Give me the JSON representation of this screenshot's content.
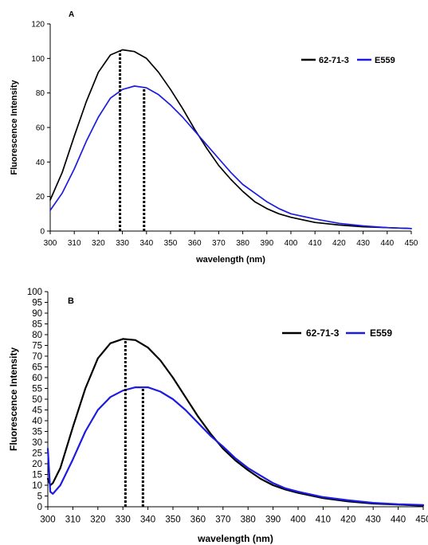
{
  "chart_data": [
    {
      "type": "line",
      "panel_label": "A",
      "title": "",
      "xlabel": "wavelength (nm)",
      "ylabel": "Fluorescence Intensity",
      "xlim": [
        300,
        450
      ],
      "ylim": [
        0,
        120
      ],
      "xticks": [
        300,
        310,
        320,
        330,
        340,
        350,
        360,
        370,
        380,
        390,
        400,
        410,
        420,
        430,
        440,
        450
      ],
      "yticks": [
        0,
        20,
        40,
        60,
        80,
        100,
        120
      ],
      "grid": false,
      "legend_position": "top-right",
      "x": [
        300,
        305,
        310,
        315,
        320,
        325,
        330,
        335,
        340,
        345,
        350,
        355,
        360,
        365,
        370,
        375,
        380,
        385,
        390,
        395,
        400,
        410,
        420,
        430,
        440,
        450
      ],
      "series": [
        {
          "name": "62-71-3",
          "color": "#000000",
          "values": [
            18,
            34,
            55,
            75,
            92,
            102,
            105,
            104,
            100,
            92,
            82,
            71,
            59,
            48,
            38,
            30,
            23,
            17,
            13,
            10,
            8,
            5,
            3.5,
            2.5,
            2,
            1.5
          ]
        },
        {
          "name": "E559",
          "color": "#1c1ce0",
          "values": [
            12,
            22,
            36,
            52,
            66,
            77,
            82,
            84,
            83,
            79,
            73,
            66,
            58,
            50,
            42,
            34,
            27,
            22,
            17,
            13,
            10,
            7,
            4.5,
            3,
            2,
            1.5
          ]
        }
      ],
      "markers": [
        {
          "x": 329,
          "series": "62-71-3"
        },
        {
          "x": 339,
          "series": "E559"
        }
      ]
    },
    {
      "type": "line",
      "panel_label": "B",
      "title": "",
      "xlabel": "wavelength (nm)",
      "ylabel": "Fluorescence Intensity",
      "xlim": [
        300,
        450
      ],
      "ylim": [
        0,
        100
      ],
      "xticks": [
        300,
        310,
        320,
        330,
        340,
        350,
        360,
        370,
        380,
        390,
        400,
        410,
        420,
        430,
        440,
        450
      ],
      "yticks": [
        0,
        5,
        10,
        15,
        20,
        25,
        30,
        35,
        40,
        45,
        50,
        55,
        60,
        65,
        70,
        75,
        80,
        85,
        90,
        95,
        100
      ],
      "grid": false,
      "legend_position": "top-right",
      "x": [
        300,
        301,
        302,
        305,
        310,
        315,
        320,
        325,
        330,
        335,
        340,
        345,
        350,
        355,
        360,
        365,
        370,
        375,
        380,
        385,
        390,
        395,
        400,
        410,
        420,
        430,
        440,
        450
      ],
      "series": [
        {
          "name": "62-71-3",
          "color": "#000000",
          "values": [
            13,
            10,
            11,
            18,
            37,
            55,
            69,
            76,
            78,
            77.5,
            74,
            68,
            60,
            51,
            42,
            34,
            27,
            21.5,
            17,
            13,
            10,
            8,
            6.5,
            4,
            2.5,
            1.5,
            1,
            0.5
          ]
        },
        {
          "name": "E559",
          "color": "#1c1ce0",
          "values": [
            27,
            7,
            6,
            10,
            22,
            35,
            45,
            51,
            54,
            55.5,
            55.5,
            53.5,
            50,
            45,
            39,
            33,
            28,
            22.5,
            18,
            14.5,
            11,
            8.5,
            7,
            4.5,
            3,
            1.8,
            1.2,
            0.8
          ]
        }
      ],
      "markers": [
        {
          "x": 331,
          "series": "62-71-3"
        },
        {
          "x": 338,
          "series": "E559"
        }
      ]
    }
  ]
}
